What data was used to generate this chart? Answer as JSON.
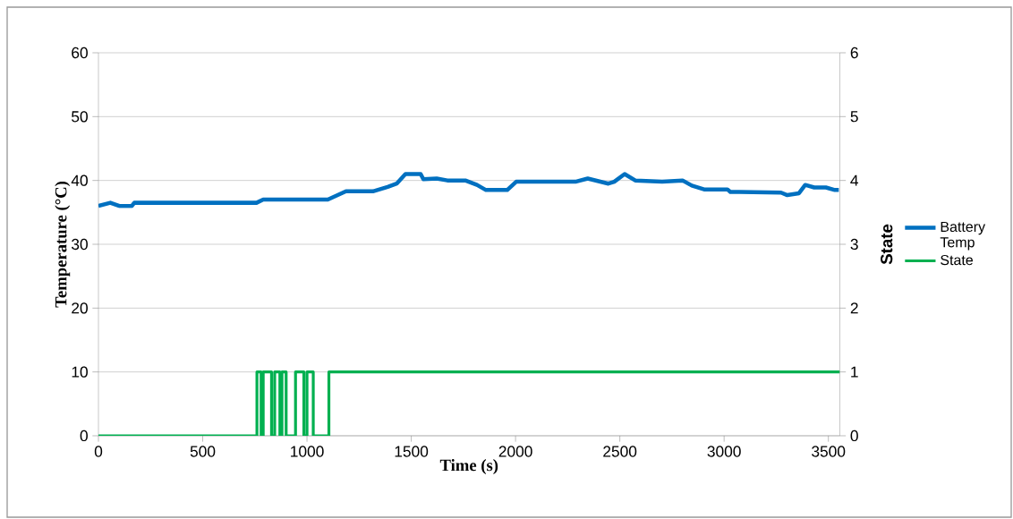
{
  "chart_data": {
    "type": "line",
    "xlabel": "Time (s)",
    "ylabel": "Temperature (°C)",
    "y2label": "State",
    "xlim": [
      0,
      3555
    ],
    "xticks": [
      0,
      500,
      1000,
      1500,
      2000,
      2500,
      3000,
      3500
    ],
    "ylim": [
      0,
      60
    ],
    "yticks": [
      0,
      10,
      20,
      30,
      40,
      50,
      60
    ],
    "y2lim": [
      0,
      6
    ],
    "y2ticks": [
      0,
      1,
      2,
      3,
      4,
      5,
      6
    ],
    "grid": "y",
    "legend": "right",
    "series": [
      {
        "name": "Battery Temp",
        "color": "#0070c0",
        "x": [
          0,
          57,
          100,
          160,
          172,
          758,
          790,
          1100,
          1187,
          1316,
          1387,
          1430,
          1472,
          1545,
          1558,
          1622,
          1673,
          1759,
          1815,
          1858,
          1960,
          2003,
          2287,
          2346,
          2445,
          2473,
          2523,
          2574,
          2703,
          2801,
          2845,
          2904,
          3016,
          3030,
          3073,
          3273,
          3303,
          3359,
          3389,
          3432,
          3488,
          3531,
          3550
        ],
        "values": [
          36,
          36.5,
          36,
          36,
          36.5,
          36.5,
          37,
          37,
          38.3,
          38.3,
          39,
          39.5,
          41,
          41,
          40.2,
          40.3,
          40,
          40,
          39.3,
          38.5,
          38.5,
          39.8,
          39.8,
          40.3,
          39.5,
          39.8,
          41,
          40,
          39.8,
          40,
          39.2,
          38.6,
          38.6,
          38.2,
          38.2,
          38.1,
          37.7,
          38,
          39.3,
          38.9,
          38.9,
          38.5,
          38.5
        ]
      },
      {
        "name": "State",
        "type": "step",
        "axis": "y2",
        "color": "#00b050",
        "x": [
          0,
          760,
          780,
          790,
          830,
          845,
          870,
          880,
          900,
          945,
          985,
          1000,
          1030,
          1105,
          3555
        ],
        "values": [
          0,
          1,
          0,
          1,
          0,
          1,
          0,
          1,
          0,
          1,
          0,
          1,
          0,
          1,
          1
        ]
      }
    ]
  }
}
